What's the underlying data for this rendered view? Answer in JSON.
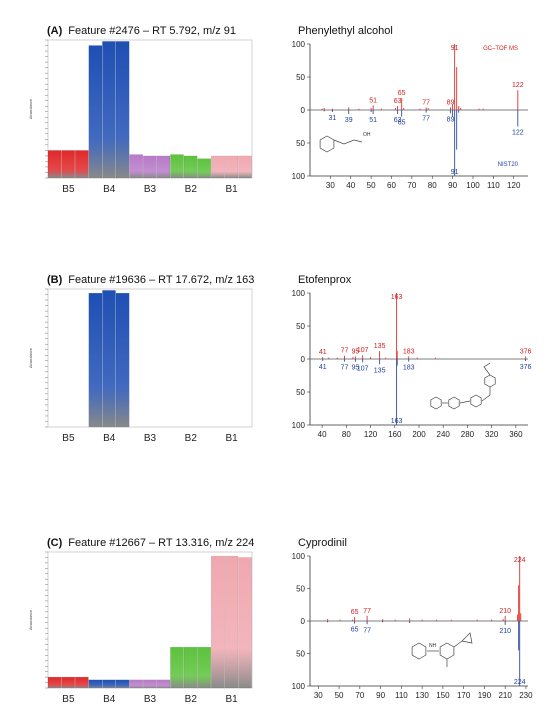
{
  "colors": {
    "bar_B5": "#e0282a",
    "bar_B4": "#1f4fb4",
    "bar_B3": "#b77ac8",
    "bar_B2": "#5cc23c",
    "bar_B1": "#f0a8b0",
    "spectrum_sample": "#e0302a",
    "spectrum_library": "#2c4aa0",
    "label_sample": "#d02020",
    "label_library": "#2040a0"
  },
  "panels": [
    {
      "letter": "(A)",
      "title": "Feature #2476 – RT 5.792, m/z 91",
      "compound": "Phenylethyl alcohol",
      "legend_top": "GC–TOF MS",
      "legend_bottom": "NIST20",
      "bar_chart": {
        "type": "bar",
        "categories": [
          "B5",
          "B4",
          "B3",
          "B2",
          "B1"
        ],
        "ylabel": "Abundance",
        "ylim": [
          0,
          1
        ],
        "bars": [
          {
            "group": "B5",
            "values": [
              0.2,
              0.2,
              0.2
            ]
          },
          {
            "group": "B4",
            "values": [
              0.96,
              0.99,
              0.99
            ]
          },
          {
            "group": "B3",
            "values": [
              0.17,
              0.16,
              0.16
            ]
          },
          {
            "group": "B2",
            "values": [
              0.17,
              0.16,
              0.14
            ]
          },
          {
            "group": "B1",
            "values": [
              0.16,
              0.16,
              0.16
            ]
          }
        ]
      },
      "spectrum": {
        "type": "bar",
        "xlim": [
          20,
          127
        ],
        "xticks": [
          30,
          40,
          50,
          60,
          70,
          80,
          90,
          100,
          110,
          120
        ],
        "yticks": [
          100,
          50,
          0,
          50,
          100
        ],
        "ylim": [
          -100,
          100
        ],
        "sample_peaks": [
          [
            26,
            2
          ],
          [
            27,
            3
          ],
          [
            31,
            2
          ],
          [
            39,
            4
          ],
          [
            44,
            2
          ],
          [
            50,
            3
          ],
          [
            51,
            7
          ],
          [
            55,
            2
          ],
          [
            62,
            3
          ],
          [
            63,
            6
          ],
          [
            65,
            18
          ],
          [
            66,
            3
          ],
          [
            74,
            2
          ],
          [
            77,
            4
          ],
          [
            78,
            3
          ],
          [
            89,
            4
          ],
          [
            90,
            8
          ],
          [
            91,
            100
          ],
          [
            92,
            65
          ],
          [
            93,
            6
          ],
          [
            94,
            3
          ],
          [
            103,
            2
          ],
          [
            105,
            2
          ],
          [
            122,
            30
          ]
        ],
        "library_peaks": [
          [
            27,
            2
          ],
          [
            31,
            3
          ],
          [
            39,
            6
          ],
          [
            50,
            3
          ],
          [
            51,
            6
          ],
          [
            63,
            6
          ],
          [
            65,
            10
          ],
          [
            77,
            4
          ],
          [
            89,
            5
          ],
          [
            90,
            10
          ],
          [
            91,
            100
          ],
          [
            92,
            60
          ],
          [
            93,
            4
          ],
          [
            122,
            25
          ]
        ],
        "sample_labels": [
          "51",
          "63",
          "65",
          "77",
          "89",
          "91",
          "122"
        ],
        "sample_label_x": [
          51,
          63,
          65,
          77,
          89,
          91,
          122
        ],
        "library_labels": [
          "31",
          "39",
          "51",
          "63",
          "65",
          "77",
          "89",
          "91",
          "122"
        ],
        "library_label_x": [
          31,
          39,
          51,
          63,
          65,
          77,
          89,
          91,
          122
        ],
        "structure_label": "OH"
      }
    },
    {
      "letter": "(B)",
      "title": "Feature #19636 – RT 17.672, m/z 163",
      "compound": "Etofenprox",
      "legend_top": "",
      "legend_bottom": "",
      "bar_chart": {
        "type": "bar",
        "categories": [
          "B5",
          "B4",
          "B3",
          "B2",
          "B1"
        ],
        "ylabel": "Abundance",
        "ylim": [
          0,
          1
        ],
        "bars": [
          {
            "group": "B5",
            "values": [
              0,
              0,
              0
            ]
          },
          {
            "group": "B4",
            "values": [
              0.97,
              0.99,
              0.97
            ]
          },
          {
            "group": "B3",
            "values": [
              0,
              0,
              0
            ]
          },
          {
            "group": "B2",
            "values": [
              0,
              0,
              0
            ]
          },
          {
            "group": "B1",
            "values": [
              0,
              0,
              0
            ]
          }
        ]
      },
      "spectrum": {
        "type": "bar",
        "xlim": [
          20,
          380
        ],
        "xticks": [
          40,
          80,
          120,
          160,
          200,
          240,
          280,
          320,
          360
        ],
        "yticks": [
          100,
          50,
          0,
          50,
          100
        ],
        "ylim": [
          -100,
          100
        ],
        "sample_peaks": [
          [
            41,
            3
          ],
          [
            51,
            2
          ],
          [
            65,
            2
          ],
          [
            77,
            5
          ],
          [
            91,
            3
          ],
          [
            95,
            4
          ],
          [
            107,
            6
          ],
          [
            120,
            3
          ],
          [
            135,
            12
          ],
          [
            145,
            2
          ],
          [
            163,
            100
          ],
          [
            164,
            12
          ],
          [
            183,
            4
          ],
          [
            197,
            2
          ],
          [
            227,
            2
          ],
          [
            376,
            4
          ]
        ],
        "library_peaks": [
          [
            41,
            3
          ],
          [
            77,
            4
          ],
          [
            95,
            4
          ],
          [
            107,
            5
          ],
          [
            135,
            8
          ],
          [
            163,
            100
          ],
          [
            164,
            10
          ],
          [
            183,
            4
          ],
          [
            376,
            3
          ]
        ],
        "sample_labels": [
          "41",
          "77",
          "95",
          "107",
          "135",
          "163",
          "183",
          "376"
        ],
        "sample_label_x": [
          41,
          77,
          95,
          107,
          135,
          163,
          183,
          376
        ],
        "library_labels": [
          "41",
          "77",
          "95",
          "107",
          "135",
          "163",
          "183",
          "376"
        ],
        "library_label_x": [
          41,
          77,
          95,
          107,
          135,
          163,
          183,
          376
        ],
        "structure_label": ""
      }
    },
    {
      "letter": "(C)",
      "title": "Feature #12667 – RT 13.316, m/z 224",
      "compound": "Cyprodinil",
      "legend_top": "",
      "legend_bottom": "",
      "bar_chart": {
        "type": "bar",
        "categories": [
          "B5",
          "B4",
          "B3",
          "B2",
          "B1"
        ],
        "ylabel": "Abundance",
        "ylim": [
          0,
          1
        ],
        "bars": [
          {
            "group": "B5",
            "values": [
              0.08,
              0.08,
              0.08
            ]
          },
          {
            "group": "B4",
            "values": [
              0.06,
              0.06,
              0.06
            ]
          },
          {
            "group": "B3",
            "values": [
              0.06,
              0.06,
              0.06
            ]
          },
          {
            "group": "B2",
            "values": [
              0.3,
              0.3,
              0.3
            ]
          },
          {
            "group": "B1",
            "values": [
              0.97,
              0.97,
              0.96
            ]
          }
        ]
      },
      "spectrum": {
        "type": "bar",
        "xlim": [
          22,
          232
        ],
        "xticks": [
          30,
          50,
          70,
          90,
          110,
          130,
          150,
          170,
          190,
          210,
          230
        ],
        "xtick_labels": [
          "30",
          "50",
          "70",
          "90",
          "110",
          "130",
          "150",
          "170",
          "190",
          "210",
          "230"
        ],
        "yticks": [
          100,
          50,
          0,
          50,
          100
        ],
        "ylim": [
          -100,
          100
        ],
        "sample_peaks": [
          [
            39,
            3
          ],
          [
            51,
            2
          ],
          [
            63,
            2
          ],
          [
            65,
            6
          ],
          [
            77,
            8
          ],
          [
            92,
            3
          ],
          [
            104,
            2
          ],
          [
            118,
            4
          ],
          [
            130,
            2
          ],
          [
            144,
            2
          ],
          [
            158,
            2
          ],
          [
            183,
            2
          ],
          [
            197,
            2
          ],
          [
            208,
            3
          ],
          [
            210,
            8
          ],
          [
            222,
            10
          ],
          [
            223,
            55
          ],
          [
            224,
            100
          ],
          [
            225,
            12
          ]
        ],
        "library_peaks": [
          [
            39,
            2
          ],
          [
            65,
            4
          ],
          [
            77,
            5
          ],
          [
            92,
            2
          ],
          [
            118,
            3
          ],
          [
            210,
            6
          ],
          [
            223,
            45
          ],
          [
            224,
            100
          ]
        ],
        "sample_labels": [
          "65",
          "77",
          "210",
          "224"
        ],
        "sample_label_x": [
          65,
          77,
          210,
          224
        ],
        "library_labels": [
          "65",
          "77",
          "210",
          "224"
        ],
        "library_label_x": [
          65,
          77,
          210,
          224
        ],
        "structure_label": "NH"
      }
    }
  ]
}
